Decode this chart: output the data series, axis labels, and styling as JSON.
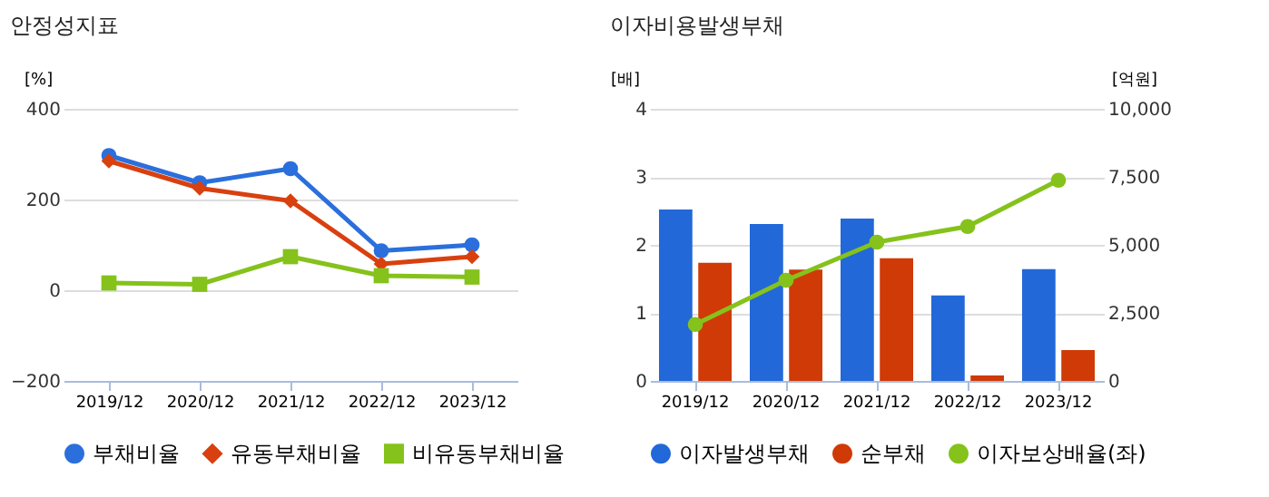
{
  "chart_data": [
    {
      "type": "line",
      "title": "안정성지표",
      "ylabel": "[%]",
      "categories": [
        "2019/12",
        "2020/12",
        "2021/12",
        "2022/12",
        "2023/12"
      ],
      "ylim": [
        -200,
        400
      ],
      "yticks": [
        -200,
        0,
        200,
        400
      ],
      "grid": "y",
      "legend": "bottom",
      "series": [
        {
          "name": "부채비율",
          "color": "#2b6fdc",
          "marker": "circle",
          "values": [
            297,
            237,
            268,
            87,
            100
          ]
        },
        {
          "name": "유동부채비율",
          "color": "#d9400f",
          "marker": "diamond",
          "values": [
            285,
            225,
            197,
            58,
            74
          ]
        },
        {
          "name": "비유동부채비율",
          "color": "#85c21b",
          "marker": "square",
          "values": [
            16,
            13,
            74,
            32,
            29
          ]
        }
      ]
    },
    {
      "type": "bar",
      "title": "이자비용발생부채",
      "ylabel": "[배]",
      "y2label": "[억원]",
      "categories": [
        "2019/12",
        "2020/12",
        "2021/12",
        "2022/12",
        "2023/12"
      ],
      "ylim": [
        0,
        4
      ],
      "yticks": [
        0,
        1,
        2,
        3,
        4
      ],
      "y2lim": [
        0,
        10000
      ],
      "y2ticks": [
        0,
        {
          "value": 2500,
          "label": "2,500"
        },
        {
          "value": 5000,
          "label": "5,000"
        },
        {
          "value": 7500,
          "label": "7,500"
        },
        {
          "value": 10000,
          "label": "10,000"
        }
      ],
      "grid": "y",
      "legend": "bottom",
      "series": [
        {
          "name": "이자발생부채",
          "color": "#2268d8",
          "axis": "y2",
          "values": [
            6300,
            5770,
            5970,
            3140,
            4110
          ]
        },
        {
          "name": "순부채",
          "color": "#cf3a06",
          "axis": "y2",
          "values": [
            4340,
            4090,
            4510,
            200,
            1130
          ]
        },
        {
          "name": "이자보상배율(좌)",
          "type": "line",
          "marker": "circle",
          "color": "#85c21b",
          "values": [
            0.83,
            1.48,
            2.04,
            2.27,
            2.95
          ]
        }
      ]
    }
  ]
}
